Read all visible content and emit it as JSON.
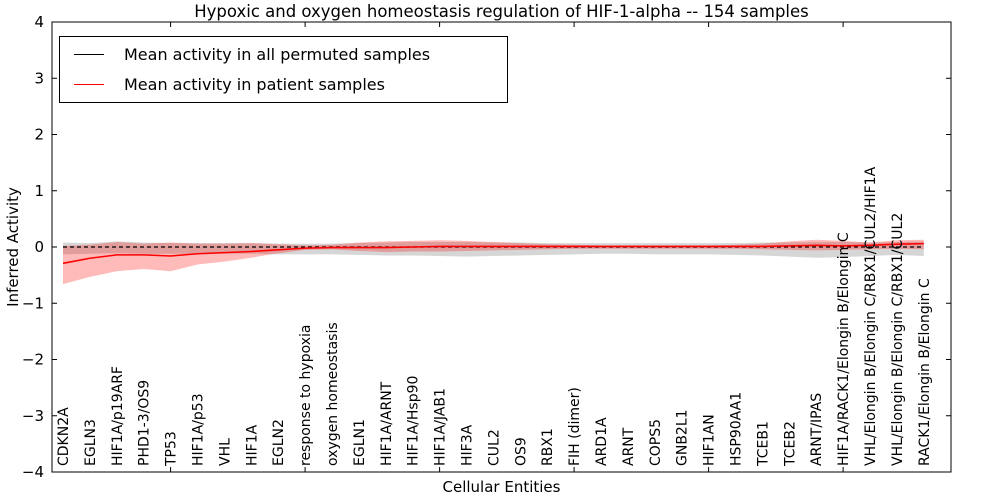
{
  "chart_data": {
    "type": "line",
    "title": "Hypoxic and oxygen homeostasis regulation of HIF-1-alpha -- 154 samples",
    "xlabel": "Cellular Entities",
    "ylabel": "Inferred Activity",
    "ylim": [
      -4,
      4
    ],
    "yticks": [
      -4,
      -3,
      -2,
      -1,
      0,
      1,
      2,
      3,
      4
    ],
    "x_major_tick_indices": [
      4,
      9,
      14,
      19,
      24,
      29
    ],
    "grid": false,
    "legend_position": "upper left",
    "background_color": "#ffffff",
    "categories": [
      "CDKN2A",
      "EGLN3",
      "HIF1A/p19ARF",
      "PHD1-3/OS9",
      "TP53",
      "HIF1A/p53",
      "VHL",
      "HIF1A",
      "EGLN2",
      "response to hypoxia",
      "oxygen homeostasis",
      "EGLN1",
      "HIF1A/ARNT",
      "HIF1A/Hsp90",
      "HIF1A/JAB1",
      "HIF3A",
      "CUL2",
      "OS9",
      "RBX1",
      "FIH (dimer)",
      "ARD1A",
      "ARNT",
      "COPS5",
      "GNB2L1",
      "HIF1AN",
      "HSP90AA1",
      "TCEB1",
      "TCEB2",
      "ARNT/IPAS",
      "HIF1A/RACK1/Elongin B/Elongin C",
      "VHL/Elongin B/Elongin C/RBX1/CUL2/HIF1A",
      "VHL/Elongin B/Elongin C/RBX1/CUL2",
      "RACK1/Elongin B/Elongin C"
    ],
    "series": [
      {
        "name": "Mean activity in all permuted samples",
        "color": "#000000",
        "line_style": "dashed",
        "band_color": "#787878",
        "band_opacity": 0.3,
        "values": [
          0,
          0,
          0,
          0,
          0,
          0,
          0,
          0,
          0,
          0,
          0,
          0,
          0,
          0,
          0,
          0,
          0,
          0,
          0,
          0,
          0,
          0,
          0,
          0,
          0,
          0,
          0,
          0,
          0,
          0,
          0,
          0,
          0
        ],
        "band_upper": [
          0.08,
          0.07,
          0.1,
          0.08,
          0.07,
          0.07,
          0.07,
          0.07,
          0.06,
          0.06,
          0.06,
          0.07,
          0.08,
          0.09,
          0.09,
          0.09,
          0.08,
          0.08,
          0.07,
          0.07,
          0.07,
          0.07,
          0.07,
          0.07,
          0.07,
          0.07,
          0.08,
          0.08,
          0.09,
          0.09,
          0.08,
          0.09,
          0.1
        ],
        "band_lower": [
          -0.13,
          -0.12,
          -0.11,
          -0.12,
          -0.12,
          -0.12,
          -0.12,
          -0.12,
          -0.13,
          -0.13,
          -0.13,
          -0.14,
          -0.15,
          -0.15,
          -0.16,
          -0.17,
          -0.16,
          -0.15,
          -0.14,
          -0.13,
          -0.12,
          -0.12,
          -0.13,
          -0.13,
          -0.13,
          -0.14,
          -0.15,
          -0.17,
          -0.19,
          -0.18,
          -0.16,
          -0.14,
          -0.16
        ]
      },
      {
        "name": "Mean activity in patient samples",
        "color": "#ff0000",
        "line_style": "solid",
        "band_color": "#ff0000",
        "band_opacity": 0.27,
        "values": [
          -0.29,
          -0.2,
          -0.14,
          -0.14,
          -0.16,
          -0.12,
          -0.1,
          -0.08,
          -0.05,
          -0.02,
          -0.01,
          -0.01,
          -0.01,
          0,
          0.01,
          0.01,
          0.01,
          0.01,
          0.01,
          0.01,
          0.01,
          0.01,
          0.01,
          0.01,
          0.01,
          0.01,
          0.01,
          0.02,
          0.03,
          0.02,
          0.03,
          0.05,
          0.06
        ],
        "band_upper": [
          0.02,
          0.04,
          0.09,
          0.06,
          0.08,
          0.06,
          0.06,
          0.07,
          0.05,
          0.03,
          0.04,
          0.08,
          0.1,
          0.11,
          0.12,
          0.11,
          0.09,
          0.07,
          0.05,
          0.04,
          0.03,
          0.03,
          0.03,
          0.03,
          0.03,
          0.04,
          0.06,
          0.1,
          0.13,
          0.11,
          0.08,
          0.12,
          0.13
        ],
        "band_lower": [
          -0.66,
          -0.53,
          -0.43,
          -0.39,
          -0.43,
          -0.31,
          -0.26,
          -0.19,
          -0.11,
          -0.05,
          -0.04,
          -0.07,
          -0.09,
          -0.08,
          -0.08,
          -0.07,
          -0.06,
          -0.05,
          -0.04,
          -0.03,
          -0.03,
          -0.03,
          -0.03,
          -0.03,
          -0.03,
          -0.03,
          -0.04,
          -0.05,
          -0.06,
          -0.05,
          -0.04,
          -0.03,
          -0.04
        ]
      }
    ]
  }
}
